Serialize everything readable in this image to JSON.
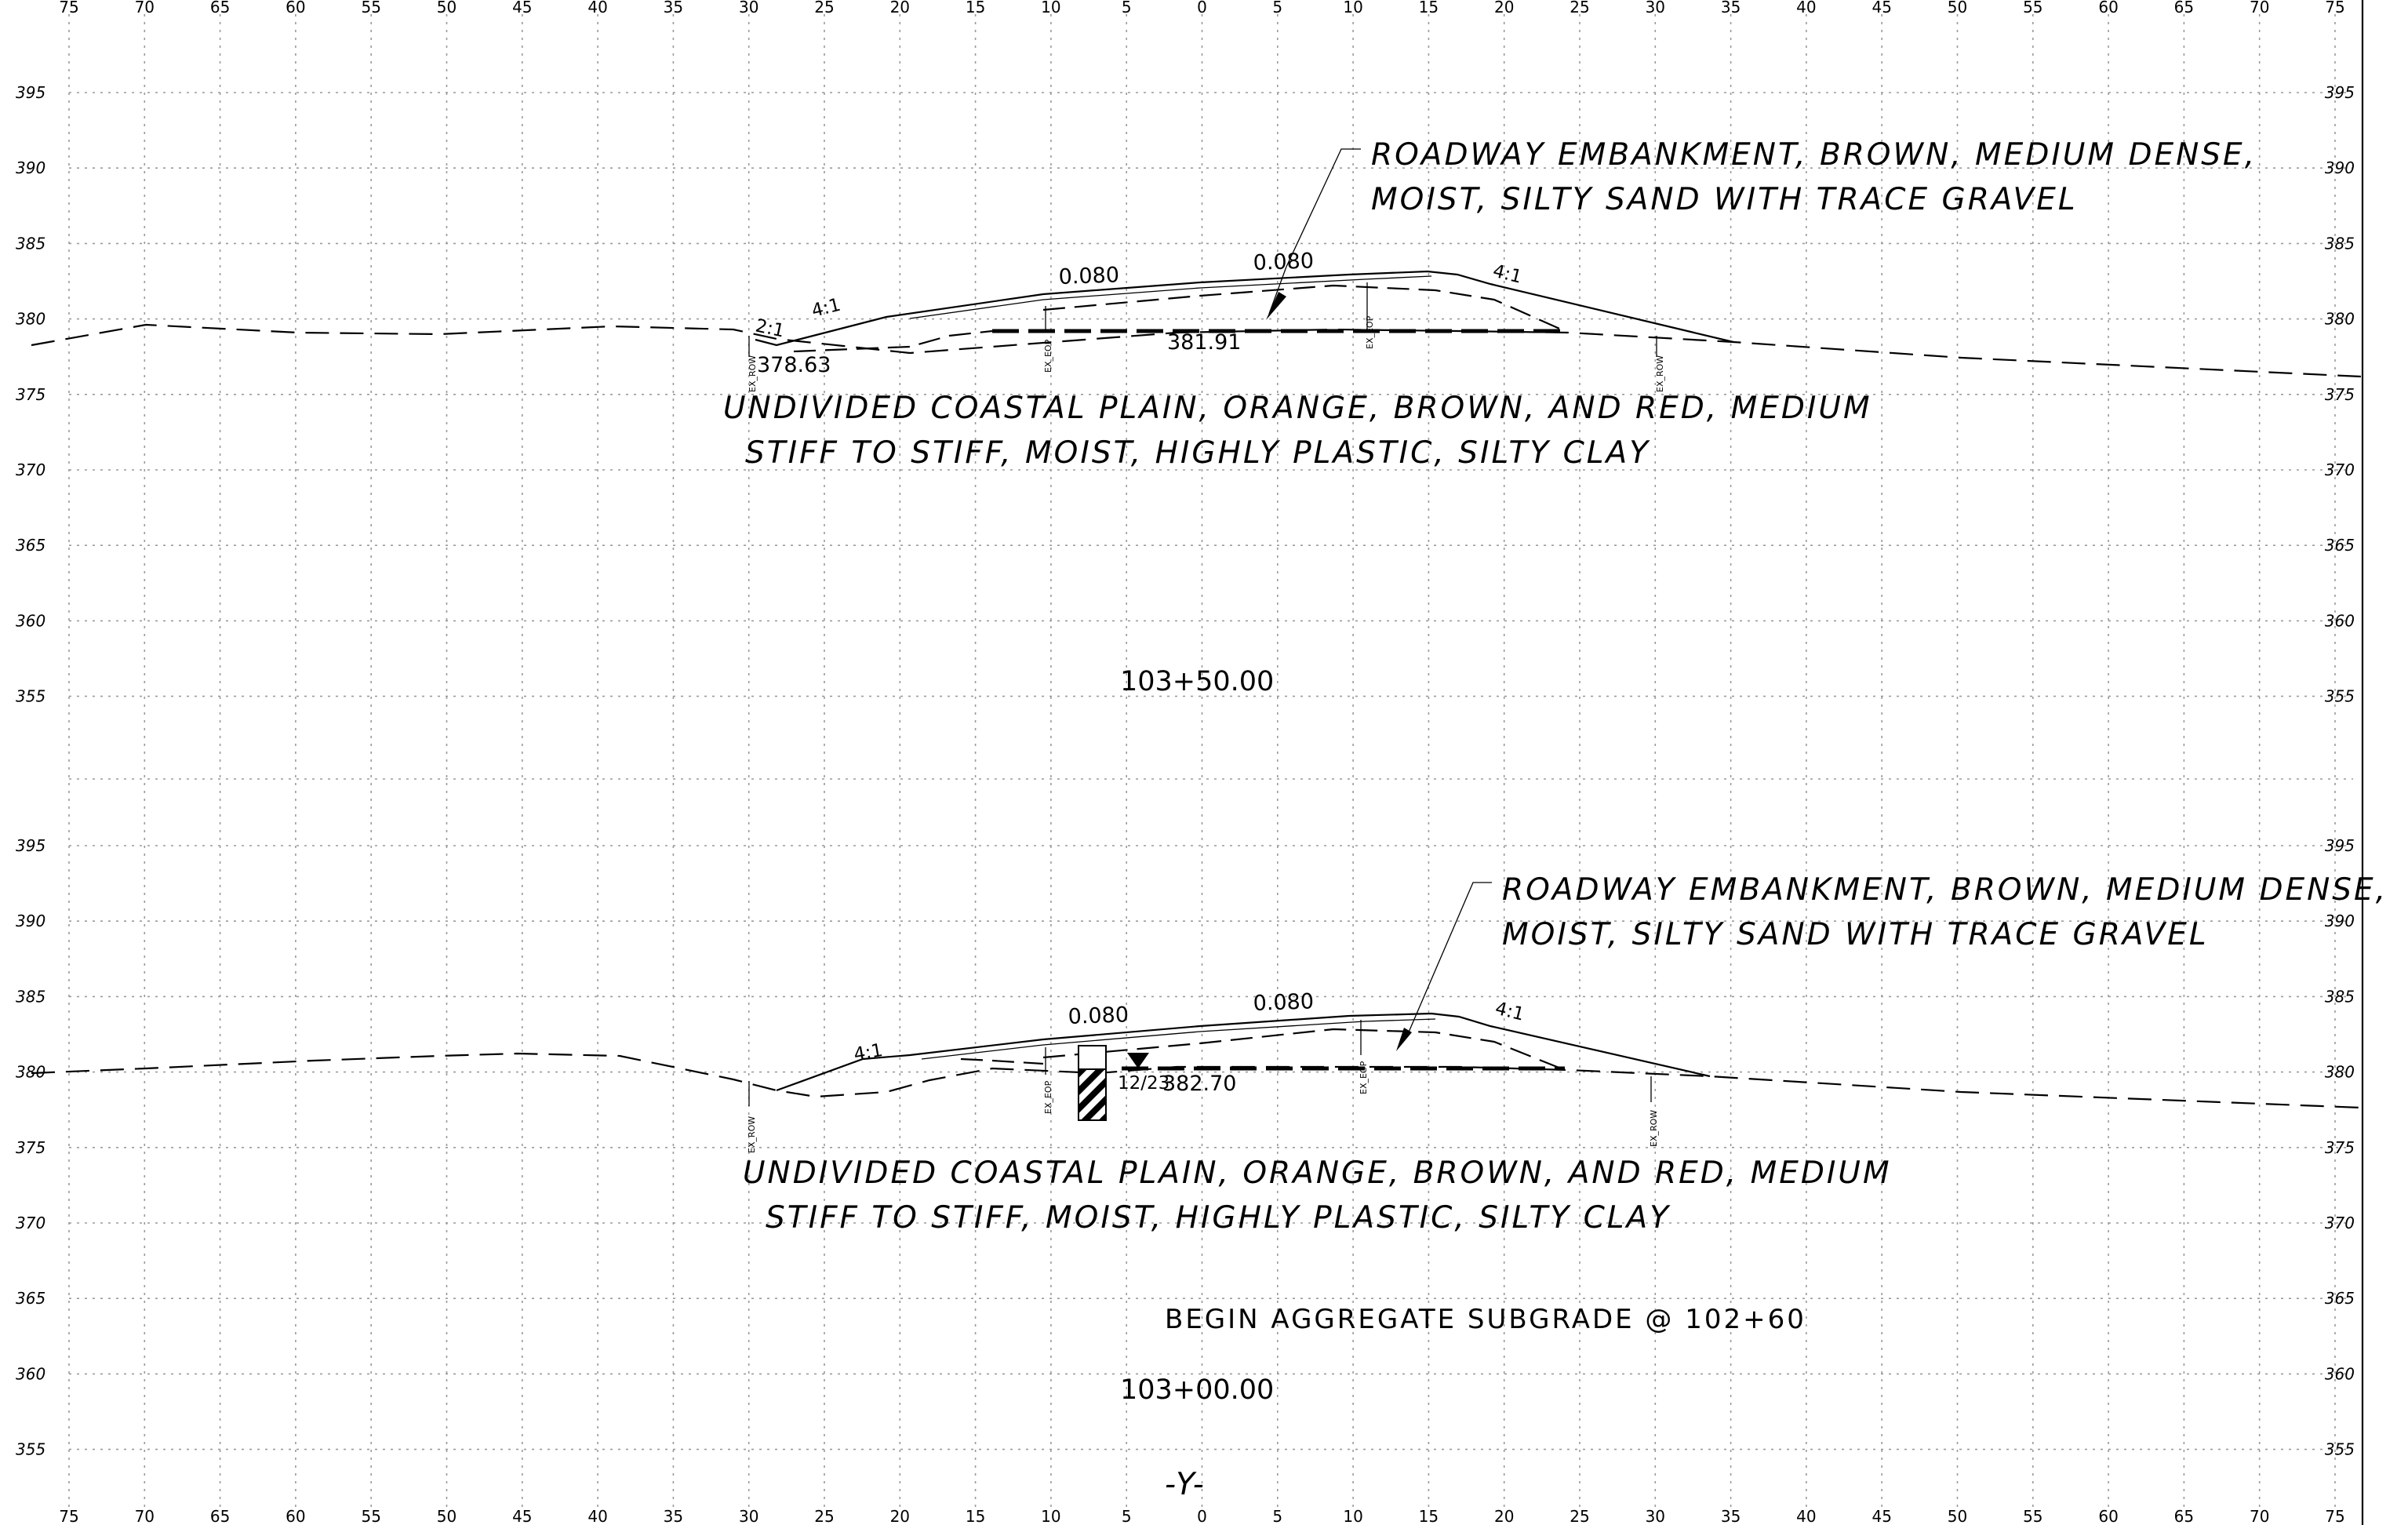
{
  "x_axis": {
    "top_labels": [
      "75",
      "70",
      "65",
      "60",
      "55",
      "50",
      "45",
      "40",
      "35",
      "30",
      "25",
      "20",
      "15",
      "10",
      "5",
      "0",
      "5",
      "10",
      "15",
      "20",
      "25",
      "30",
      "35",
      "40",
      "45",
      "50",
      "55",
      "60",
      "65",
      "70",
      "75"
    ],
    "bottom_labels": [
      "75",
      "70",
      "65",
      "60",
      "55",
      "50",
      "45",
      "40",
      "35",
      "30",
      "25",
      "20",
      "15",
      "10",
      "5",
      "0",
      "5",
      "10",
      "15",
      "20",
      "25",
      "30",
      "35",
      "40",
      "45",
      "50",
      "55",
      "60",
      "65",
      "70",
      "75"
    ]
  },
  "sections": [
    {
      "id": "upper",
      "elevation_labels": [
        "395",
        "390",
        "385",
        "380",
        "375",
        "370",
        "365",
        "360",
        "355"
      ],
      "station": "103+50.00",
      "embankment_note": [
        "ROADWAY EMBANKMENT, BROWN, MEDIUM DENSE,",
        "MOIST, SILTY SAND WITH TRACE GRAVEL"
      ],
      "soil_note": [
        "UNDIVIDED COASTAL PLAIN, ORANGE, BROWN, AND RED, MEDIUM",
        "STIFF TO STIFF, MOIST, HIGHLY PLASTIC, SILTY CLAY"
      ],
      "cross_slope_left": "0.080",
      "cross_slope_right": "0.080",
      "side_slope_left_outer": "2:1",
      "side_slope_left_inner": "4:1",
      "side_slope_right": "4:1",
      "elev_left": "378.63",
      "elev_center": "381.91",
      "markers": [
        "EX_ROW",
        "EX_EOP",
        "EX_EOP",
        "EX_ROW"
      ]
    },
    {
      "id": "lower",
      "elevation_labels": [
        "395",
        "390",
        "385",
        "380",
        "375",
        "370",
        "365",
        "360",
        "355"
      ],
      "station": "103+00.00",
      "embankment_note": [
        "ROADWAY EMBANKMENT, BROWN, MEDIUM DENSE,",
        "MOIST, SILTY SAND WITH TRACE GRAVEL"
      ],
      "soil_note": [
        "UNDIVIDED COASTAL PLAIN, ORANGE, BROWN, AND RED, MEDIUM",
        "STIFF TO STIFF, MOIST, HIGHLY PLASTIC, SILTY CLAY"
      ],
      "cross_slope_left": "0.080",
      "cross_slope_right": "0.080",
      "side_slope_left": "4:1",
      "side_slope_right": "4:1",
      "boring_id": "12/23",
      "elev_water": "382.70",
      "subgrade_note": "BEGIN AGGREGATE SUBGRADE @ 102+60",
      "markers": [
        "EX_ROW",
        "EX_EOP",
        "EX_EOP",
        "EX_ROW"
      ]
    }
  ],
  "alignment_label": "-Y-"
}
